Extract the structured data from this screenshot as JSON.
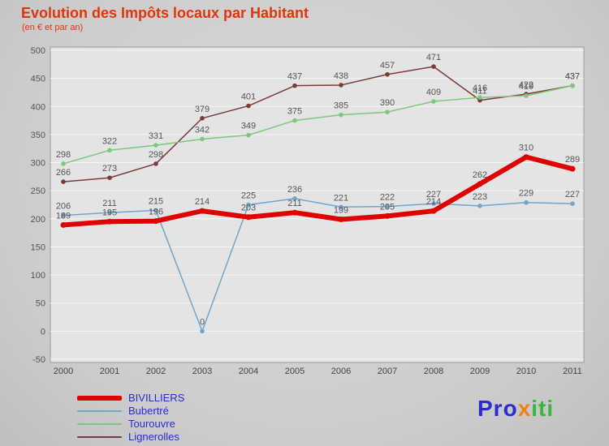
{
  "title": "Evolution des Impôts locaux par Habitant",
  "subtitle": "(en € et par an)",
  "logo": {
    "parts": [
      {
        "text": "Pro",
        "color": "#2b2bcf"
      },
      {
        "text": "x",
        "color": "#f08114"
      },
      {
        "text": "iti",
        "color": "#3db43d"
      }
    ]
  },
  "colors": {
    "title": "#e2340b",
    "legend_text": "#2a2ad0",
    "axis_text": "#555555",
    "plot_bg": "#e4e4e4"
  },
  "chart_data": {
    "type": "line",
    "title": "Evolution des Impôts locaux par Habitant",
    "subtitle": "(en € et par an)",
    "xlabel": "",
    "ylabel": "",
    "x": [
      2000,
      2001,
      2002,
      2003,
      2004,
      2005,
      2006,
      2007,
      2008,
      2009,
      2010,
      2011
    ],
    "ylim": [
      -50,
      500
    ],
    "ytick_step": 50,
    "grid": true,
    "legend_position": "bottom-left",
    "series": [
      {
        "name": "BIVILLIERS",
        "color": "#e00000",
        "width": 6,
        "values": [
          189,
          195,
          196,
          214,
          203,
          211,
          199,
          205,
          214,
          262,
          310,
          289
        ]
      },
      {
        "name": "Bubertré",
        "color": "#6ea6cd",
        "width": 1.5,
        "values": [
          206,
          211,
          215,
          0,
          225,
          236,
          221,
          222,
          227,
          223,
          229,
          227
        ]
      },
      {
        "name": "Tourouvre",
        "color": "#7dc87d",
        "width": 1.5,
        "values": [
          298,
          322,
          331,
          342,
          349,
          375,
          385,
          390,
          409,
          416,
          419,
          437
        ]
      },
      {
        "name": "Lignerolles",
        "color": "#7b3b3b",
        "width": 1.5,
        "values": [
          266,
          273,
          298,
          379,
          401,
          437,
          438,
          457,
          471,
          411,
          422,
          437
        ]
      }
    ]
  }
}
